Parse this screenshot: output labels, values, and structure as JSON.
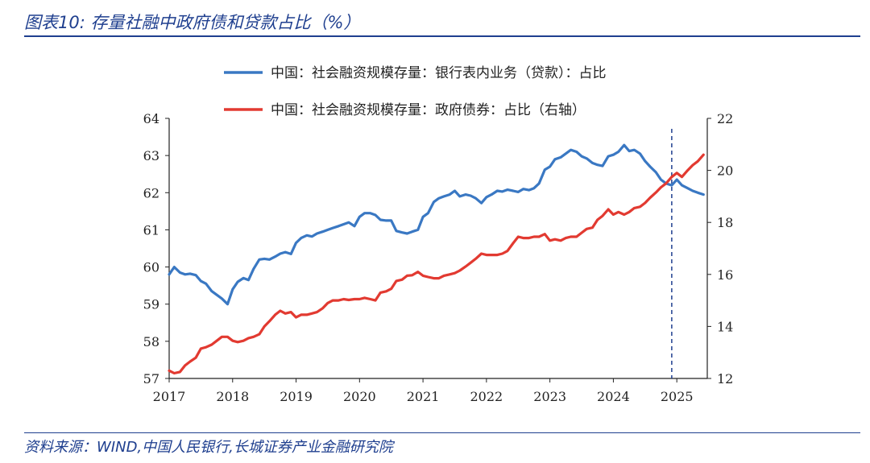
{
  "title": "图表10:  存量社融中政府债和贷款占比（%）",
  "source": "资料来源：WIND,中国人民银行,长城证券产业金融研究院",
  "chart_data": {
    "type": "line",
    "x_ticks": [
      "2017",
      "2018",
      "2019",
      "2020",
      "2021",
      "2022",
      "2023",
      "2024",
      "2025"
    ],
    "y_left": {
      "min": 57,
      "max": 64,
      "ticks": [
        "57",
        "58",
        "59",
        "60",
        "61",
        "62",
        "63",
        "64"
      ]
    },
    "y_right": {
      "min": 12,
      "max": 22,
      "ticks": [
        "12",
        "14",
        "16",
        "18",
        "20",
        "22"
      ]
    },
    "legend_position": "top",
    "marker_line_x": 2024.92,
    "series": [
      {
        "name": "中国：社会融资规模存量：银行表内业务（贷款）：占比",
        "axis": "left",
        "color": "#3a78c3",
        "x": [
          2017.0,
          2017.08,
          2017.17,
          2017.25,
          2017.33,
          2017.42,
          2017.5,
          2017.58,
          2017.67,
          2017.75,
          2017.83,
          2017.92,
          2018.0,
          2018.08,
          2018.17,
          2018.25,
          2018.33,
          2018.42,
          2018.5,
          2018.58,
          2018.67,
          2018.75,
          2018.83,
          2018.92,
          2019.0,
          2019.08,
          2019.17,
          2019.25,
          2019.33,
          2019.42,
          2019.5,
          2019.58,
          2019.67,
          2019.75,
          2019.83,
          2019.92,
          2020.0,
          2020.08,
          2020.17,
          2020.25,
          2020.33,
          2020.42,
          2020.5,
          2020.58,
          2020.67,
          2020.75,
          2020.83,
          2020.92,
          2021.0,
          2021.08,
          2021.17,
          2021.25,
          2021.33,
          2021.42,
          2021.5,
          2021.58,
          2021.67,
          2021.75,
          2021.83,
          2021.92,
          2022.0,
          2022.08,
          2022.17,
          2022.25,
          2022.33,
          2022.42,
          2022.5,
          2022.58,
          2022.67,
          2022.75,
          2022.83,
          2022.92,
          2023.0,
          2023.08,
          2023.17,
          2023.25,
          2023.33,
          2023.42,
          2023.5,
          2023.58,
          2023.67,
          2023.75,
          2023.83,
          2023.92,
          2024.0,
          2024.08,
          2024.17,
          2024.25,
          2024.33,
          2024.42,
          2024.5,
          2024.58,
          2024.67,
          2024.75,
          2024.83,
          2024.92,
          2025.0,
          2025.08,
          2025.17,
          2025.25,
          2025.33,
          2025.42
        ],
        "values": [
          59.8,
          60.0,
          59.85,
          59.8,
          59.82,
          59.78,
          59.62,
          59.55,
          59.35,
          59.25,
          59.15,
          59.0,
          59.4,
          59.6,
          59.7,
          59.65,
          59.95,
          60.2,
          60.22,
          60.2,
          60.28,
          60.36,
          60.4,
          60.35,
          60.65,
          60.78,
          60.85,
          60.82,
          60.9,
          60.95,
          61.0,
          61.05,
          61.1,
          61.15,
          61.2,
          61.1,
          61.35,
          61.45,
          61.45,
          61.4,
          61.27,
          61.25,
          61.25,
          60.97,
          60.93,
          60.9,
          60.95,
          61.0,
          61.35,
          61.45,
          61.75,
          61.85,
          61.9,
          61.95,
          62.05,
          61.9,
          61.95,
          61.92,
          61.85,
          61.72,
          61.88,
          61.95,
          62.05,
          62.03,
          62.08,
          62.05,
          62.02,
          62.1,
          62.07,
          62.12,
          62.25,
          62.62,
          62.7,
          62.9,
          62.95,
          63.05,
          63.15,
          63.1,
          62.98,
          62.92,
          62.8,
          62.75,
          62.72,
          62.98,
          63.02,
          63.1,
          63.28,
          63.12,
          63.15,
          63.05,
          62.85,
          62.7,
          62.55,
          62.35,
          62.25,
          62.2,
          62.35,
          62.2,
          62.12,
          62.05,
          62.0,
          61.95
        ]
      },
      {
        "name": "中国：社会融资规模存量：政府债券：占比（右轴）",
        "axis": "right",
        "color": "#e23a31",
        "x": [
          2017.0,
          2017.08,
          2017.17,
          2017.25,
          2017.33,
          2017.42,
          2017.5,
          2017.58,
          2017.67,
          2017.75,
          2017.83,
          2017.92,
          2018.0,
          2018.08,
          2018.17,
          2018.25,
          2018.33,
          2018.42,
          2018.5,
          2018.58,
          2018.67,
          2018.75,
          2018.83,
          2018.92,
          2019.0,
          2019.08,
          2019.17,
          2019.25,
          2019.33,
          2019.42,
          2019.5,
          2019.58,
          2019.67,
          2019.75,
          2019.83,
          2019.92,
          2020.0,
          2020.08,
          2020.17,
          2020.25,
          2020.33,
          2020.42,
          2020.5,
          2020.58,
          2020.67,
          2020.75,
          2020.83,
          2020.92,
          2021.0,
          2021.08,
          2021.17,
          2021.25,
          2021.33,
          2021.42,
          2021.5,
          2021.58,
          2021.67,
          2021.75,
          2021.83,
          2021.92,
          2022.0,
          2022.08,
          2022.17,
          2022.25,
          2022.33,
          2022.42,
          2022.5,
          2022.58,
          2022.67,
          2022.75,
          2022.83,
          2022.92,
          2023.0,
          2023.08,
          2023.17,
          2023.25,
          2023.33,
          2023.42,
          2023.5,
          2023.58,
          2023.67,
          2023.75,
          2023.83,
          2023.92,
          2024.0,
          2024.08,
          2024.17,
          2024.25,
          2024.33,
          2024.42,
          2024.5,
          2024.58,
          2024.67,
          2024.75,
          2024.83,
          2024.92,
          2025.0,
          2025.08,
          2025.17,
          2025.25,
          2025.33,
          2025.42
        ],
        "values": [
          12.3,
          12.2,
          12.25,
          12.5,
          12.65,
          12.8,
          13.15,
          13.2,
          13.3,
          13.45,
          13.6,
          13.6,
          13.45,
          13.4,
          13.45,
          13.55,
          13.6,
          13.7,
          14.0,
          14.2,
          14.45,
          14.6,
          14.5,
          14.55,
          14.35,
          14.45,
          14.45,
          14.5,
          14.55,
          14.7,
          14.9,
          15.0,
          15.0,
          15.05,
          15.02,
          15.05,
          15.05,
          15.1,
          15.05,
          15.0,
          15.3,
          15.35,
          15.45,
          15.75,
          15.8,
          15.95,
          15.97,
          16.1,
          15.95,
          15.9,
          15.85,
          15.85,
          15.95,
          16.0,
          16.05,
          16.15,
          16.3,
          16.45,
          16.6,
          16.8,
          16.75,
          16.75,
          16.75,
          16.8,
          16.9,
          17.2,
          17.45,
          17.4,
          17.4,
          17.45,
          17.45,
          17.55,
          17.3,
          17.35,
          17.3,
          17.4,
          17.45,
          17.45,
          17.6,
          17.75,
          17.8,
          18.1,
          18.25,
          18.5,
          18.3,
          18.4,
          18.3,
          18.4,
          18.55,
          18.6,
          18.75,
          18.95,
          19.15,
          19.35,
          19.5,
          19.75,
          19.9,
          19.75,
          20.0,
          20.2,
          20.35,
          20.6
        ]
      }
    ]
  }
}
